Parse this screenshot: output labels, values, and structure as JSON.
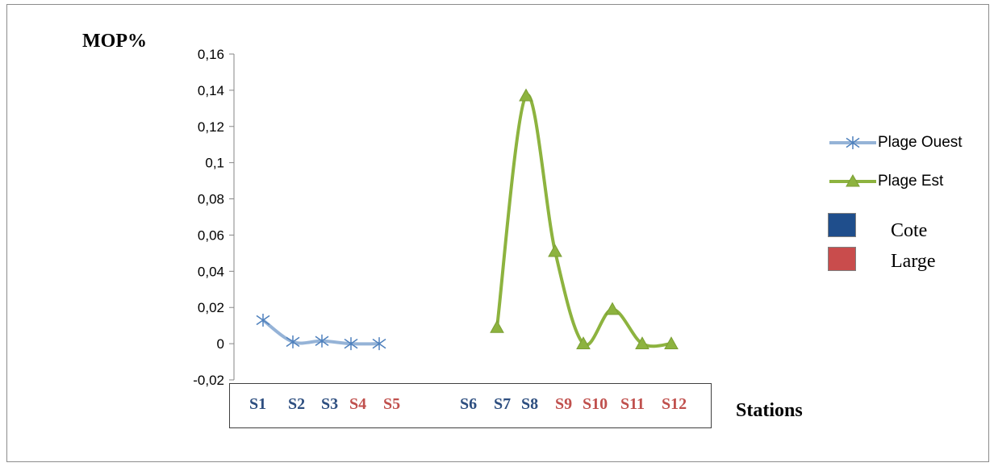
{
  "chart_data": {
    "type": "line",
    "ylabel": "MOP%",
    "xlabel": "Stations",
    "ylim": [
      -0.02,
      0.16
    ],
    "yticks": [
      "0,16",
      "0,14",
      "0,12",
      "0,1",
      "0,08",
      "0,06",
      "0,04",
      "0,02",
      "0",
      "-0,02"
    ],
    "ytick_values": [
      0.16,
      0.14,
      0.12,
      0.1,
      0.08,
      0.06,
      0.04,
      0.02,
      0,
      -0.02
    ],
    "categories": [
      "S1",
      "S2",
      "S3",
      "S4",
      "S5",
      "S6",
      "S7",
      "S8",
      "S9",
      "S10",
      "S11",
      "S12"
    ],
    "category_colors": [
      "#2e4f80",
      "#2e4f80",
      "#2e4f80",
      "#c0504d",
      "#c0504d",
      "#2e4f80",
      "#2e4f80",
      "#2e4f80",
      "#c0504d",
      "#c0504d",
      "#c0504d",
      "#c0504d"
    ],
    "series": [
      {
        "name": "Plage Ouest",
        "color": "#95b3d7",
        "marker": "asterisk",
        "values": [
          0.013,
          0.001,
          0.0015,
          0.0,
          0.0,
          null,
          null,
          null,
          null,
          null,
          null,
          null
        ]
      },
      {
        "name": "Plage Est",
        "color": "#8db33f",
        "marker": "triangle",
        "values": [
          null,
          null,
          null,
          null,
          null,
          0.009,
          0.137,
          0.051,
          0.0,
          0.019,
          0.0,
          0.0
        ]
      }
    ],
    "legend": {
      "placement": "right",
      "boxes": [
        {
          "label": "Cote",
          "color": "#1f4e8c"
        },
        {
          "label": "Large",
          "color": "#c94c4c"
        }
      ]
    },
    "grid": false
  }
}
